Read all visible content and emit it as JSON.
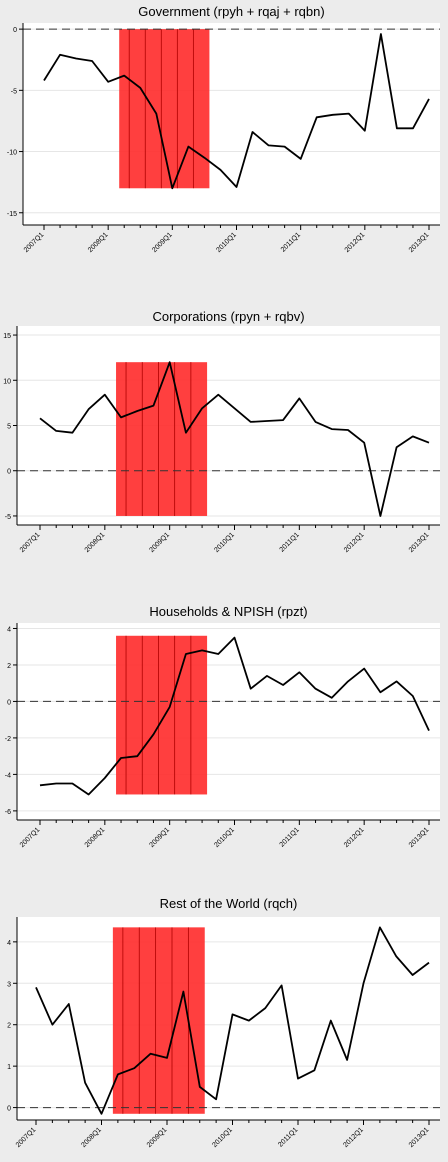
{
  "quarters": [
    "2007Q1",
    "2007Q2",
    "2007Q3",
    "2007Q4",
    "2008Q1",
    "2008Q2",
    "2008Q3",
    "2008Q4",
    "2009Q1",
    "2009Q2",
    "2009Q3",
    "2009Q4",
    "2010Q1",
    "2010Q2",
    "2010Q3",
    "2010Q4",
    "2011Q1",
    "2011Q2",
    "2011Q3",
    "2011Q4",
    "2012Q1",
    "2012Q2",
    "2012Q3",
    "2012Q4",
    "2013Q1"
  ],
  "tick_labels": [
    "2007Q1",
    "2008Q1",
    "2009Q1",
    "2010Q1",
    "2011Q1",
    "2012Q1",
    "2013Q1"
  ],
  "colors": {
    "line": "#000000",
    "recession_fill": "#ff2a2a",
    "recession_stripe": "#b00000",
    "panel_bg": "#ececec",
    "plot_bg": "#ffffff",
    "grid": "#e6e6e6"
  },
  "chart_data": [
    {
      "type": "line",
      "title": "Government (rpyh + rqaj + rqbn)",
      "ylim": [
        -16,
        0.5
      ],
      "yticks": [
        0,
        -5,
        -10,
        -15
      ],
      "zero_line": "dashed",
      "shade": {
        "from": "2008Q2",
        "to": "2009Q3",
        "y_top": 0,
        "y_bottom": -13
      },
      "values": [
        -4.2,
        -2.1,
        -2.4,
        -2.6,
        -4.3,
        -3.8,
        -4.8,
        -6.9,
        -13.0,
        -9.6,
        -10.5,
        -11.5,
        -12.9,
        -8.4,
        -9.5,
        -9.6,
        -10.6,
        -7.2,
        -7.0,
        -6.9,
        -8.3,
        -0.4,
        -8.1,
        -8.1,
        -5.7
      ]
    },
    {
      "type": "line",
      "title": "Corporations (rpyn + rqbv)",
      "ylim": [
        -6,
        16
      ],
      "yticks": [
        15,
        10,
        5,
        0,
        -5
      ],
      "zero_line": "dashed",
      "shade": {
        "from": "2008Q2",
        "to": "2009Q3",
        "y_top": 12,
        "y_bottom": -5
      },
      "values": [
        5.8,
        4.4,
        4.2,
        6.8,
        8.4,
        5.9,
        6.6,
        7.2,
        12.0,
        4.2,
        6.9,
        8.4,
        6.9,
        5.4,
        5.5,
        5.6,
        8.0,
        5.4,
        4.6,
        4.5,
        3.1,
        -5.0,
        2.6,
        3.8,
        3.1
      ]
    },
    {
      "type": "line",
      "title": "Households & NPISH (rpzt)",
      "ylim": [
        -6.5,
        4.3
      ],
      "yticks": [
        4,
        2,
        0,
        -2,
        -4,
        -6
      ],
      "zero_line": "dashed",
      "shade": {
        "from": "2008Q2",
        "to": "2009Q3",
        "y_top": 3.6,
        "y_bottom": -5.1
      },
      "values": [
        -4.6,
        -4.5,
        -4.5,
        -5.1,
        -4.2,
        -3.1,
        -3.0,
        -1.8,
        -0.3,
        2.6,
        2.8,
        2.6,
        3.5,
        0.7,
        1.4,
        0.9,
        1.6,
        0.7,
        0.2,
        1.1,
        1.8,
        0.5,
        1.1,
        0.3,
        -1.6
      ]
    },
    {
      "type": "line",
      "title": "Rest of the World (rqch)",
      "ylim": [
        -0.3,
        4.6
      ],
      "yticks": [
        4,
        3,
        2,
        1,
        0
      ],
      "zero_line": "dashed",
      "shade": {
        "from": "2008Q2",
        "to": "2009Q3",
        "y_top": 4.35,
        "y_bottom": -0.15
      },
      "values": [
        2.9,
        2.0,
        2.5,
        0.6,
        -0.15,
        0.8,
        0.95,
        1.3,
        1.2,
        2.8,
        0.5,
        0.2,
        2.25,
        2.1,
        2.4,
        2.95,
        0.7,
        0.9,
        2.1,
        1.15,
        3.0,
        4.35,
        3.65,
        3.2,
        3.5
      ]
    }
  ]
}
